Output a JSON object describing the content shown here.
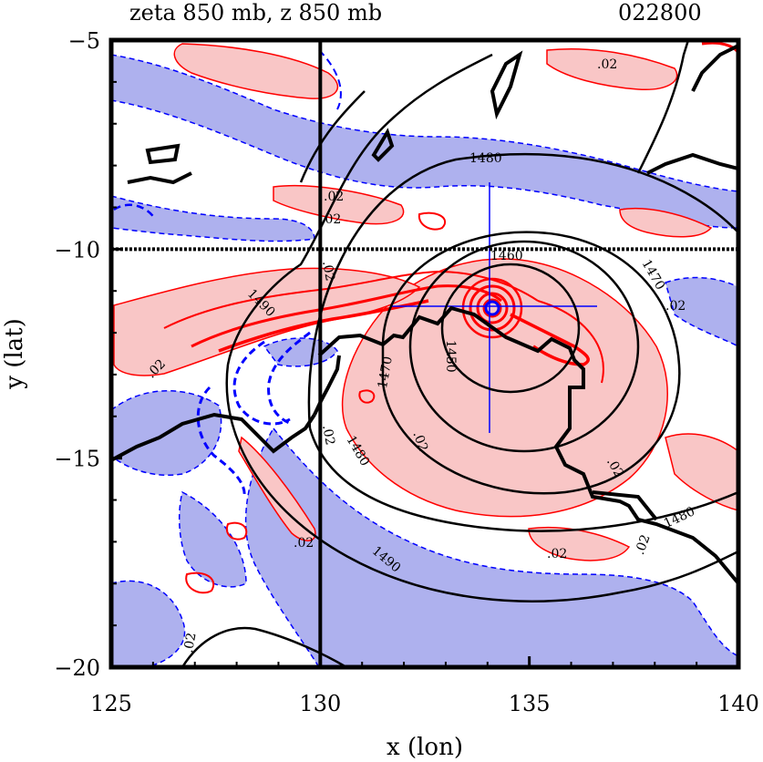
{
  "chart_data": {
    "type": "contour",
    "title": "zeta 850 mb, z 850 mb",
    "date_label": "022800",
    "xlabel": "x (lon)",
    "ylabel": "y (lat)",
    "xlim": [
      125,
      140
    ],
    "ylim": [
      -20,
      -5
    ],
    "x_ticks": [
      125,
      130,
      135,
      140
    ],
    "x_tick_labels": [
      "125",
      "130",
      "135",
      "140"
    ],
    "y_ticks": [
      -5,
      -10,
      -15,
      -20
    ],
    "y_tick_labels": [
      "−5",
      "−10",
      "−15",
      "−20"
    ],
    "reference_lines": {
      "lon": 130,
      "lat": -10
    },
    "center": {
      "lon": 134.0,
      "lat": -11.4
    },
    "height_contour_labels": [
      "1450",
      "1460",
      "1470",
      "1480",
      "1490"
    ],
    "vorticity_contour_label": ".02",
    "colors": {
      "positive_zeta": "#ff0000",
      "positive_fill": "#f9c6c6",
      "negative_zeta": "#0000ff",
      "negative_fill": "#aeb1ee",
      "height": "#000000",
      "marker": "#0000ff"
    }
  }
}
